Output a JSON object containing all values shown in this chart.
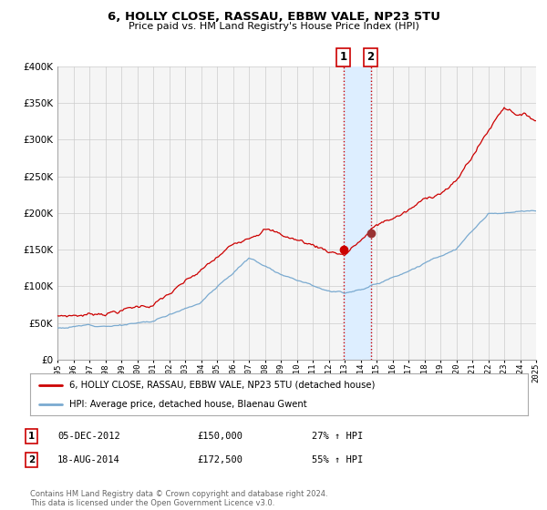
{
  "title": "6, HOLLY CLOSE, RASSAU, EBBW VALE, NP23 5TU",
  "subtitle": "Price paid vs. HM Land Registry's House Price Index (HPI)",
  "red_label": "6, HOLLY CLOSE, RASSAU, EBBW VALE, NP23 5TU (detached house)",
  "blue_label": "HPI: Average price, detached house, Blaenau Gwent",
  "transaction1_date": "05-DEC-2012",
  "transaction1_price": 150000,
  "transaction1_hpi": "27% ↑ HPI",
  "transaction1_year": 2012.92,
  "transaction2_date": "18-AUG-2014",
  "transaction2_price": 172500,
  "transaction2_hpi": "55% ↑ HPI",
  "transaction2_year": 2014.63,
  "ylim": [
    0,
    400000
  ],
  "xlim_start": 1995,
  "xlim_end": 2025,
  "red_color": "#cc0000",
  "blue_color": "#7aaad0",
  "shade_color": "#ddeeff",
  "grid_color": "#cccccc",
  "footer": "Contains HM Land Registry data © Crown copyright and database right 2024.\nThis data is licensed under the Open Government Licence v3.0.",
  "bg_color": "#ffffff",
  "plot_bg": "#f5f5f5"
}
